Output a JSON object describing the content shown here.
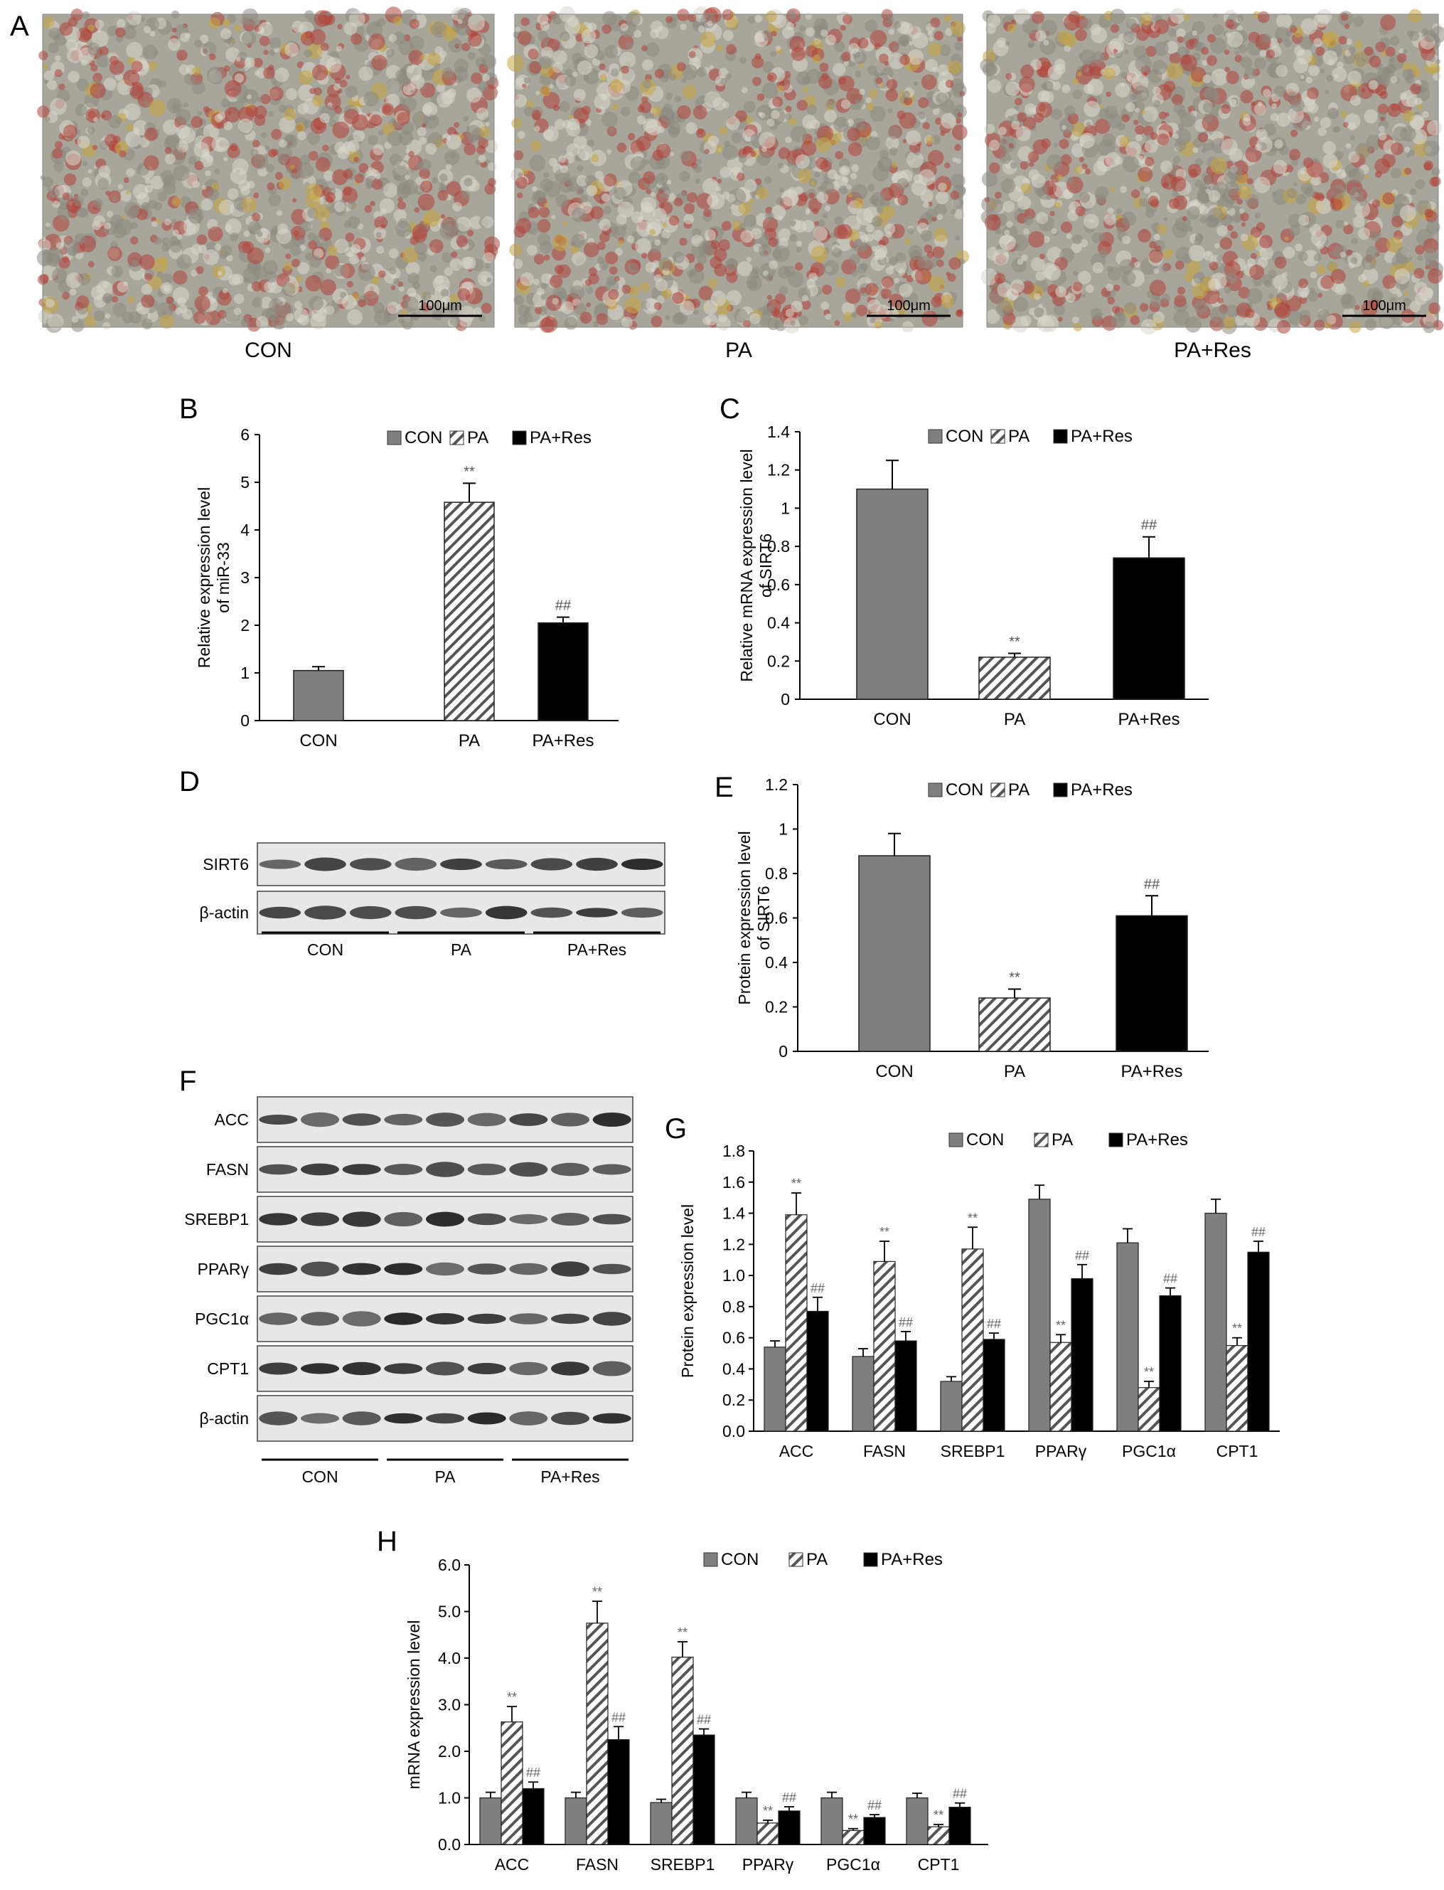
{
  "colors": {
    "con": "#7f7f7f",
    "pa_hatch": "#555555",
    "pares": "#000000",
    "micro_bg": "#a8a59a",
    "micro_cell_red": "#b0443a",
    "micro_cell_yellow": "#c9a640",
    "blot_bg": "#e7e7e7",
    "band": "#1e1e1e"
  },
  "legend_labels": [
    "CON",
    "PA",
    "PA+Res"
  ],
  "panel_a": {
    "label": "A",
    "scale_bar": "100μm",
    "images": [
      {
        "caption": "CON"
      },
      {
        "caption": "PA"
      },
      {
        "caption": "PA+Res"
      }
    ]
  },
  "panel_d": {
    "label": "D",
    "rows": [
      "SIRT6",
      "β-actin"
    ],
    "groups": [
      "CON",
      "PA",
      "PA+Res"
    ]
  },
  "panel_f": {
    "label": "F",
    "rows": [
      "ACC",
      "FASN",
      "SREBP1",
      "PPARγ",
      "PGC1α",
      "CPT1",
      "β-actin"
    ],
    "groups": [
      "CON",
      "PA",
      "PA+Res"
    ]
  },
  "chart_data": [
    {
      "id": "B",
      "type": "bar",
      "label": "B",
      "ylabel": [
        "Relative expression level",
        "of miR-33"
      ],
      "categories": [
        "CON",
        "PA",
        "PA+Res"
      ],
      "ylim": [
        0,
        6
      ],
      "yticks": [
        "0",
        "1",
        "2",
        "3",
        "4",
        "5",
        "6"
      ],
      "series": [
        {
          "values": [
            1.05,
            4.58,
            2.05
          ],
          "errors": [
            0.08,
            0.4,
            0.12
          ],
          "styles": [
            "con",
            "pa",
            "pares"
          ]
        }
      ],
      "annotations": [
        "",
        "**",
        "##"
      ]
    },
    {
      "id": "C",
      "type": "bar",
      "label": "C",
      "ylabel": [
        "Relative mRNA expression level",
        "of SIRT6"
      ],
      "categories": [
        "CON",
        "PA",
        "PA+Res"
      ],
      "ylim": [
        0,
        1.4
      ],
      "yticks": [
        "0",
        "0.2",
        "0.4",
        "0.6",
        "0.8",
        "1",
        "1.2",
        "1.4"
      ],
      "series": [
        {
          "values": [
            1.1,
            0.22,
            0.74
          ],
          "errors": [
            0.15,
            0.02,
            0.11
          ],
          "styles": [
            "con",
            "pa",
            "pares"
          ]
        }
      ],
      "annotations": [
        "",
        "**",
        "##"
      ]
    },
    {
      "id": "E",
      "type": "bar",
      "label": "E",
      "ylabel": [
        "Protein expression level",
        "of SIRT6"
      ],
      "categories": [
        "CON",
        "PA",
        "PA+Res"
      ],
      "ylim": [
        0,
        1.2
      ],
      "yticks": [
        "0",
        "0.2",
        "0.4",
        "0.6",
        "0.8",
        "1",
        "1.2"
      ],
      "series": [
        {
          "values": [
            0.88,
            0.24,
            0.61
          ],
          "errors": [
            0.1,
            0.04,
            0.09
          ],
          "styles": [
            "con",
            "pa",
            "pares"
          ]
        }
      ],
      "annotations": [
        "",
        "**",
        "##"
      ]
    },
    {
      "id": "G",
      "type": "bar",
      "label": "G",
      "ylabel": [
        "Protein expression level"
      ],
      "categories": [
        "ACC",
        "FASN",
        "SREBP1",
        "PPARγ",
        "PGC1α",
        "CPT1"
      ],
      "ylim": [
        0,
        1.8
      ],
      "yticks": [
        "0.0",
        "0.2",
        "0.4",
        "0.6",
        "0.8",
        "1.0",
        "1.2",
        "1.4",
        "1.6",
        "1.8"
      ],
      "series": [
        {
          "name": "CON",
          "values": [
            0.54,
            0.48,
            0.32,
            1.49,
            1.21,
            1.4
          ],
          "errors": [
            0.04,
            0.05,
            0.03,
            0.09,
            0.09,
            0.09
          ],
          "ann": [
            "",
            "",
            "",
            "",
            "",
            ""
          ]
        },
        {
          "name": "PA",
          "values": [
            1.39,
            1.09,
            1.17,
            0.57,
            0.28,
            0.55
          ],
          "errors": [
            0.14,
            0.13,
            0.14,
            0.05,
            0.04,
            0.05
          ],
          "ann": [
            "**",
            "**",
            "**",
            "**",
            "**",
            "**"
          ]
        },
        {
          "name": "PA+Res",
          "values": [
            0.77,
            0.58,
            0.59,
            0.98,
            0.87,
            1.15
          ],
          "errors": [
            0.09,
            0.06,
            0.04,
            0.09,
            0.05,
            0.07
          ],
          "ann": [
            "##",
            "##",
            "##",
            "##",
            "##",
            "##"
          ]
        }
      ]
    },
    {
      "id": "H",
      "type": "bar",
      "label": "H",
      "ylabel": [
        "mRNA expression level"
      ],
      "categories": [
        "ACC",
        "FASN",
        "SREBP1",
        "PPARγ",
        "PGC1α",
        "CPT1"
      ],
      "ylim": [
        0,
        6
      ],
      "yticks": [
        "0.0",
        "1.0",
        "2.0",
        "3.0",
        "4.0",
        "5.0",
        "6.0"
      ],
      "series": [
        {
          "name": "CON",
          "values": [
            1.0,
            1.0,
            0.9,
            1.0,
            1.0,
            1.0
          ],
          "errors": [
            0.12,
            0.12,
            0.07,
            0.12,
            0.12,
            0.1
          ],
          "ann": [
            "",
            "",
            "",
            "",
            "",
            ""
          ]
        },
        {
          "name": "PA",
          "values": [
            2.63,
            4.75,
            4.02,
            0.46,
            0.3,
            0.38
          ],
          "errors": [
            0.33,
            0.47,
            0.33,
            0.06,
            0.04,
            0.05
          ],
          "ann": [
            "**",
            "**",
            "**",
            "**",
            "**",
            "**"
          ]
        },
        {
          "name": "PA+Res",
          "values": [
            1.2,
            2.25,
            2.35,
            0.72,
            0.58,
            0.8
          ],
          "errors": [
            0.14,
            0.28,
            0.13,
            0.09,
            0.06,
            0.09
          ],
          "ann": [
            "##",
            "##",
            "##",
            "##",
            "##",
            "##"
          ]
        }
      ]
    }
  ]
}
